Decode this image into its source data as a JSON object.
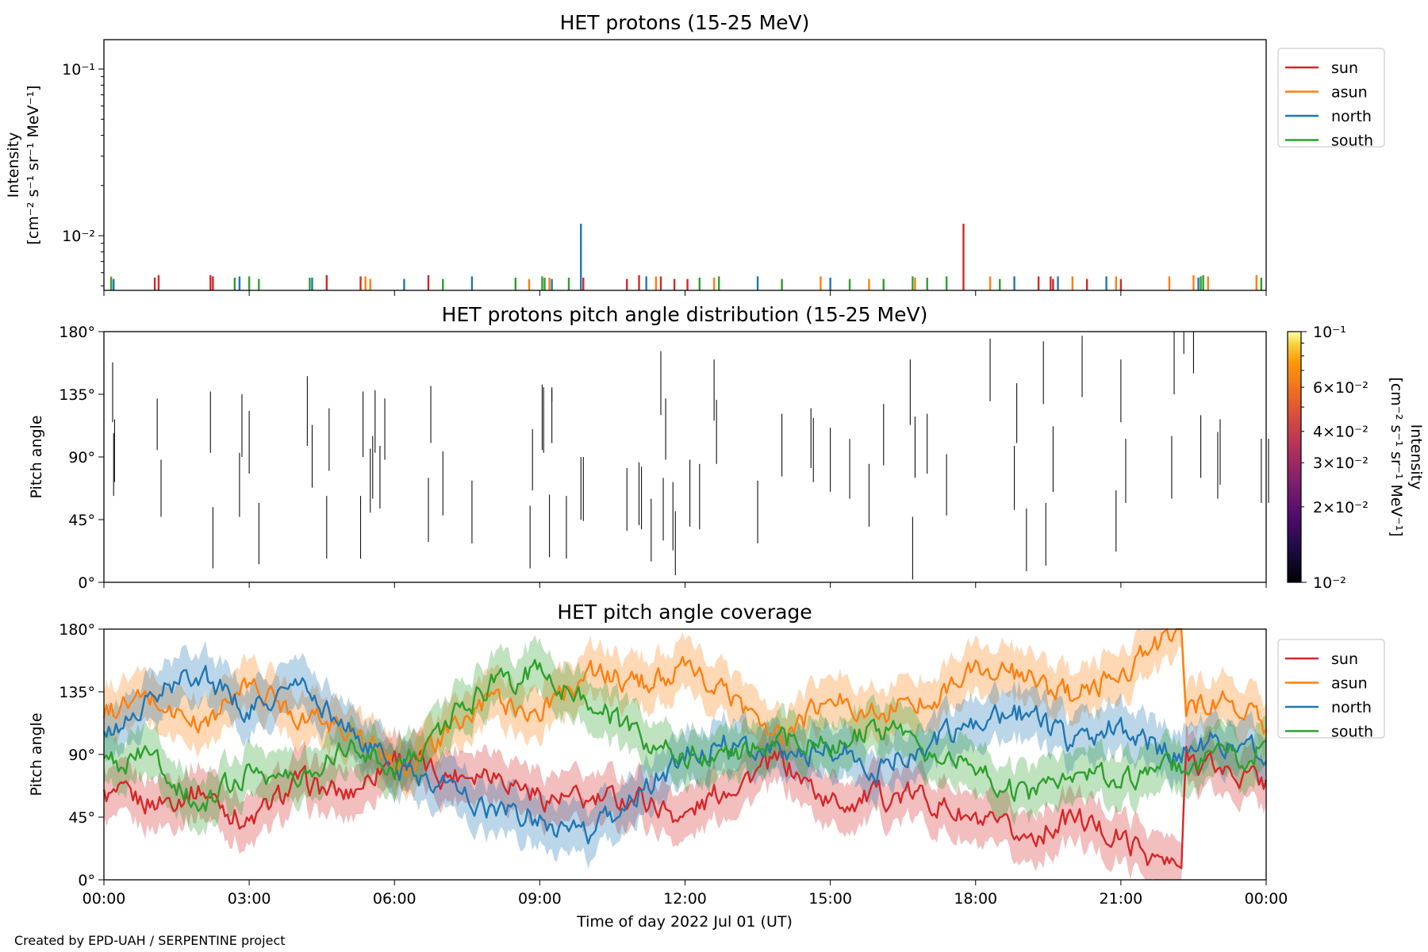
{
  "credit": "Created by EPD-UAH / SERPENTINE project",
  "colors": {
    "sun": "#d62728",
    "asun": "#ff7f0e",
    "north": "#1f77b4",
    "south": "#2ca02c"
  },
  "chart_data": [
    {
      "type": "line",
      "title": "HET protons (15-25 MeV)",
      "ylabel_line1": "Intensity",
      "ylabel_line2": "[cm⁻² s⁻¹ sr⁻¹ MeV⁻¹]",
      "yscale": "log",
      "ylim": [
        0.0047,
        0.15
      ],
      "yticks": [
        {
          "value": 0.01,
          "label": "10⁻²"
        },
        {
          "value": 0.1,
          "label": "10⁻¹"
        }
      ],
      "xlim_hours": [
        0,
        24
      ],
      "legend": {
        "placement": "outside-right-top",
        "entries": [
          "sun",
          "asun",
          "north",
          "south"
        ]
      },
      "series": [
        {
          "name": "sun",
          "color": "#d62728",
          "spikes": [
            [
              1.05,
              0.0056
            ],
            [
              1.13,
              0.0058
            ],
            [
              2.2,
              0.0058
            ],
            [
              2.25,
              0.0057
            ],
            [
              4.6,
              0.0058
            ],
            [
              5.3,
              0.0057
            ],
            [
              6.7,
              0.0058
            ],
            [
              9.9,
              0.0056
            ],
            [
              10.8,
              0.0055
            ],
            [
              11.05,
              0.0058
            ],
            [
              11.5,
              0.0057
            ],
            [
              11.78,
              0.0055
            ],
            [
              12.05,
              0.0055
            ],
            [
              17.75,
              0.0118
            ],
            [
              19.3,
              0.0057
            ],
            [
              19.55,
              0.0057
            ],
            [
              19.6,
              0.0055
            ],
            [
              20.3,
              0.0055
            ],
            [
              21.0,
              0.0055
            ]
          ]
        },
        {
          "name": "asun",
          "color": "#ff7f0e",
          "spikes": [
            [
              0.15,
              0.0057
            ],
            [
              5.4,
              0.0057
            ],
            [
              5.5,
              0.0055
            ],
            [
              8.78,
              0.0055
            ],
            [
              9.2,
              0.0056
            ],
            [
              11.4,
              0.0057
            ],
            [
              12.6,
              0.0056
            ],
            [
              14.8,
              0.0057
            ],
            [
              15.8,
              0.0055
            ],
            [
              16.75,
              0.0056
            ],
            [
              18.3,
              0.0057
            ],
            [
              20.0,
              0.0057
            ],
            [
              20.9,
              0.0057
            ],
            [
              22.0,
              0.0057
            ],
            [
              22.5,
              0.0058
            ],
            [
              22.8,
              0.0057
            ],
            [
              23.8,
              0.0058
            ]
          ]
        },
        {
          "name": "north",
          "color": "#1f77b4",
          "spikes": [
            [
              0.2,
              0.0055
            ],
            [
              2.8,
              0.0057
            ],
            [
              4.3,
              0.0056
            ],
            [
              6.2,
              0.0055
            ],
            [
              7.6,
              0.0057
            ],
            [
              9.25,
              0.0055
            ],
            [
              9.85,
              0.0118
            ],
            [
              11.2,
              0.0057
            ],
            [
              13.5,
              0.0057
            ],
            [
              15.0,
              0.0056
            ],
            [
              18.8,
              0.0057
            ],
            [
              19.7,
              0.0057
            ],
            [
              20.7,
              0.0057
            ],
            [
              22.6,
              0.0056
            ]
          ]
        },
        {
          "name": "south",
          "color": "#2ca02c",
          "spikes": [
            [
              0.15,
              0.0056
            ],
            [
              2.7,
              0.0056
            ],
            [
              3.0,
              0.0057
            ],
            [
              3.2,
              0.0055
            ],
            [
              4.25,
              0.0056
            ],
            [
              7.0,
              0.0055
            ],
            [
              8.5,
              0.0056
            ],
            [
              9.05,
              0.0057
            ],
            [
              9.1,
              0.0056
            ],
            [
              9.6,
              0.0056
            ],
            [
              12.3,
              0.0056
            ],
            [
              12.7,
              0.0057
            ],
            [
              14.0,
              0.0055
            ],
            [
              15.4,
              0.0055
            ],
            [
              16.1,
              0.0055
            ],
            [
              16.7,
              0.0057
            ],
            [
              17.0,
              0.0056
            ],
            [
              17.4,
              0.0057
            ],
            [
              18.5,
              0.0055
            ],
            [
              22.65,
              0.0057
            ],
            [
              22.7,
              0.0058
            ],
            [
              23.9,
              0.0056
            ]
          ]
        }
      ]
    },
    {
      "type": "heatmap",
      "title": "HET protons pitch angle distribution (15-25 MeV)",
      "ylabel": "Pitch angle",
      "ylim": [
        0,
        180
      ],
      "yticks": [
        {
          "value": 0,
          "label": "0°"
        },
        {
          "value": 45,
          "label": "45°"
        },
        {
          "value": 90,
          "label": "90°"
        },
        {
          "value": 135,
          "label": "135°"
        },
        {
          "value": 180,
          "label": "180°"
        }
      ],
      "xlim_hours": [
        0,
        24
      ],
      "colorbar": {
        "label": "Intensity",
        "unit": "[cm⁻² s⁻¹ sr⁻¹ MeV⁻¹]",
        "scale": "log",
        "range": [
          0.01,
          0.1
        ],
        "colormap": "inferno",
        "ticks": [
          {
            "value": 0.1,
            "label": "10⁻¹"
          },
          {
            "value": 0.06,
            "label": "6×10⁻²"
          },
          {
            "value": 0.04,
            "label": "4×10⁻²"
          },
          {
            "value": 0.03,
            "label": "3×10⁻²"
          },
          {
            "value": 0.02,
            "label": "2×10⁻²"
          },
          {
            "value": 0.01,
            "label": "10⁻²"
          }
        ]
      },
      "segments": [
        [
          0.18,
          115,
          158
        ],
        [
          0.2,
          62,
          107
        ],
        [
          0.22,
          72,
          117
        ],
        [
          1.1,
          95,
          132
        ],
        [
          1.18,
          47,
          88
        ],
        [
          2.2,
          93,
          137
        ],
        [
          2.25,
          10,
          54
        ],
        [
          2.8,
          47,
          93
        ],
        [
          2.85,
          90,
          135
        ],
        [
          3.0,
          78,
          123
        ],
        [
          3.2,
          13,
          57
        ],
        [
          4.2,
          98,
          148
        ],
        [
          4.3,
          68,
          113
        ],
        [
          4.6,
          17,
          62
        ],
        [
          4.65,
          80,
          125
        ],
        [
          5.3,
          17,
          62
        ],
        [
          5.35,
          90,
          137
        ],
        [
          5.5,
          50,
          96
        ],
        [
          5.55,
          60,
          105
        ],
        [
          5.6,
          93,
          138
        ],
        [
          5.7,
          53,
          98
        ],
        [
          5.8,
          88,
          132
        ],
        [
          6.7,
          29,
          75
        ],
        [
          6.75,
          100,
          141
        ],
        [
          7.0,
          48,
          94
        ],
        [
          7.6,
          28,
          73
        ],
        [
          8.8,
          10,
          55
        ],
        [
          8.85,
          66,
          110
        ],
        [
          9.05,
          95,
          142
        ],
        [
          9.08,
          93,
          140
        ],
        [
          9.2,
          18,
          63
        ],
        [
          9.25,
          130,
          140
        ],
        [
          9.25,
          100,
          138
        ],
        [
          9.55,
          17,
          62
        ],
        [
          9.85,
          45,
          90
        ],
        [
          9.9,
          44,
          90
        ],
        [
          10.8,
          37,
          82
        ],
        [
          11.05,
          41,
          86
        ],
        [
          11.1,
          38,
          83
        ],
        [
          11.3,
          15,
          60
        ],
        [
          11.5,
          120,
          166
        ],
        [
          11.55,
          30,
          75
        ],
        [
          11.6,
          88,
          132
        ],
        [
          11.75,
          23,
          72
        ],
        [
          11.8,
          5,
          51
        ],
        [
          12.1,
          40,
          88
        ],
        [
          12.3,
          38,
          85
        ],
        [
          12.6,
          116,
          160
        ],
        [
          12.65,
          85,
          131
        ],
        [
          13.5,
          28,
          73
        ],
        [
          14.0,
          76,
          121
        ],
        [
          14.6,
          82,
          125
        ],
        [
          14.65,
          72,
          118
        ],
        [
          15.0,
          65,
          111
        ],
        [
          15.4,
          60,
          103
        ],
        [
          15.8,
          40,
          85
        ],
        [
          16.1,
          84,
          128
        ],
        [
          16.65,
          113,
          160
        ],
        [
          16.7,
          2,
          47
        ],
        [
          16.75,
          75,
          119
        ],
        [
          17.0,
          78,
          121
        ],
        [
          17.4,
          48,
          92
        ],
        [
          18.3,
          130,
          175
        ],
        [
          18.8,
          52,
          98
        ],
        [
          18.85,
          100,
          143
        ],
        [
          19.05,
          8,
          53
        ],
        [
          19.4,
          128,
          173
        ],
        [
          19.45,
          12,
          57
        ],
        [
          19.6,
          65,
          112
        ],
        [
          20.2,
          133,
          177
        ],
        [
          20.9,
          22,
          66
        ],
        [
          21.0,
          115,
          160
        ],
        [
          21.1,
          57,
          103
        ],
        [
          22.05,
          60,
          105
        ],
        [
          22.1,
          135,
          180
        ],
        [
          22.3,
          164,
          180
        ],
        [
          22.5,
          150,
          180
        ],
        [
          22.65,
          75,
          120
        ],
        [
          23.0,
          60,
          108
        ],
        [
          23.05,
          70,
          117
        ],
        [
          23.9,
          57,
          103
        ],
        [
          24.05,
          57,
          103
        ]
      ]
    },
    {
      "type": "line",
      "title": "HET pitch angle coverage",
      "ylabel": "Pitch angle",
      "xlabel": "Time of day 2022 Jul 01 (UT)",
      "ylim": [
        0,
        180
      ],
      "yticks": [
        {
          "value": 0,
          "label": "0°"
        },
        {
          "value": 45,
          "label": "45°"
        },
        {
          "value": 90,
          "label": "90°"
        },
        {
          "value": 135,
          "label": "135°"
        },
        {
          "value": 180,
          "label": "180°"
        }
      ],
      "xticks": [
        "00:00",
        "03:00",
        "06:00",
        "09:00",
        "12:00",
        "15:00",
        "18:00",
        "21:00",
        "00:00"
      ],
      "xlim_hours": [
        0,
        24
      ],
      "legend": {
        "placement": "outside-right-top",
        "entries": [
          "sun",
          "asun",
          "north",
          "south"
        ]
      },
      "band_halfwidth_deg": 18,
      "series": [
        {
          "name": "sun",
          "color": "#d62728",
          "x_hours": [
            0,
            1,
            2,
            3,
            4,
            5,
            6,
            7,
            8,
            9,
            10,
            11,
            12,
            13,
            14,
            15,
            16,
            17,
            18,
            19,
            20,
            21,
            22,
            22.25,
            22.35,
            23,
            24
          ],
          "values": [
            60,
            55,
            65,
            40,
            70,
            60,
            90,
            75,
            80,
            60,
            55,
            60,
            45,
            70,
            85,
            55,
            60,
            60,
            40,
            30,
            45,
            30,
            10,
            8,
            90,
            80,
            70
          ]
        },
        {
          "name": "asun",
          "color": "#ff7f0e",
          "x_hours": [
            0,
            1,
            2,
            3,
            4,
            5,
            6,
            7,
            8,
            9,
            10,
            11,
            12,
            13,
            14,
            15,
            16,
            17,
            18,
            19,
            20,
            21,
            21.5,
            22,
            22.25,
            22.35,
            23,
            24
          ],
          "values": [
            120,
            130,
            110,
            140,
            120,
            110,
            80,
            100,
            130,
            120,
            150,
            140,
            150,
            130,
            100,
            130,
            120,
            130,
            150,
            145,
            130,
            150,
            160,
            175,
            178,
            120,
            130,
            110
          ]
        },
        {
          "name": "north",
          "color": "#1f77b4",
          "x_hours": [
            0,
            1,
            2,
            3,
            4,
            5,
            6,
            7,
            8,
            9,
            10,
            11,
            12,
            13,
            14,
            15,
            16,
            17,
            18,
            19,
            20,
            21,
            22,
            23,
            24
          ],
          "values": [
            100,
            130,
            150,
            120,
            140,
            110,
            80,
            70,
            50,
            45,
            30,
            60,
            90,
            100,
            90,
            95,
            80,
            100,
            110,
            120,
            100,
            110,
            90,
            100,
            90
          ]
        },
        {
          "name": "south",
          "color": "#2ca02c",
          "x_hours": [
            0,
            1,
            2,
            3,
            4,
            5,
            6,
            7,
            8,
            9,
            10,
            11,
            12,
            13,
            14,
            15,
            16,
            17,
            18,
            19,
            20,
            21,
            22,
            23,
            24
          ],
          "values": [
            80,
            90,
            50,
            80,
            70,
            100,
            80,
            110,
            140,
            150,
            130,
            100,
            90,
            90,
            100,
            95,
            110,
            90,
            80,
            60,
            80,
            70,
            80,
            85,
            95
          ]
        }
      ]
    }
  ]
}
